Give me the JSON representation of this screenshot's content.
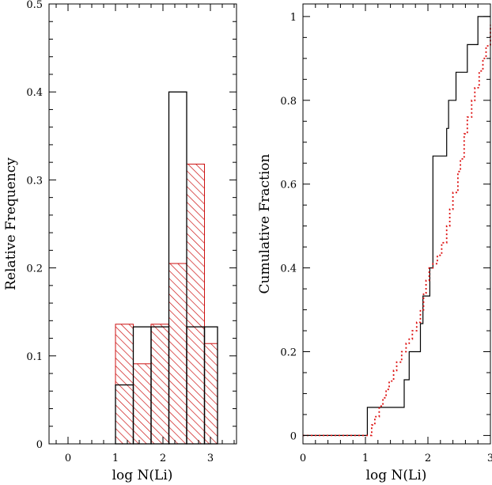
{
  "chart_data": [
    {
      "type": "bar",
      "subtype": "histogram",
      "xlabel": "log N(Li)",
      "ylabel": "Relative Frequency",
      "xlim": [
        -0.4,
        3.55
      ],
      "ylim": [
        0,
        0.5
      ],
      "xticks": [
        0,
        1,
        2,
        3
      ],
      "xtick_labels": [
        "0",
        "1",
        "2",
        "3"
      ],
      "yticks": [
        0,
        0.1,
        0.2,
        0.3,
        0.4,
        0.5
      ],
      "ytick_labels": [
        "0",
        "0.1",
        "0.2",
        "0.3",
        "0.4",
        "0.5"
      ],
      "series": [
        {
          "style": "solid black outline, unfilled",
          "color": "#000000",
          "bin_edges": [
            1.0,
            1.375,
            1.75,
            2.125,
            2.5,
            2.875,
            3.15
          ],
          "values": [
            0.067,
            0.133,
            0.133,
            0.4,
            0.133,
            0.133
          ]
        },
        {
          "style": "red diagonal hatch",
          "color": "#cc1111",
          "bin_edges": [
            1.0,
            1.375,
            1.75,
            2.125,
            2.5,
            2.875,
            3.15
          ],
          "values": [
            0.136,
            0.091,
            0.136,
            0.205,
            0.318,
            0.114
          ]
        }
      ]
    },
    {
      "type": "line",
      "subtype": "cumulative step",
      "xlabel": "log N(Li)",
      "ylabel": "Cumulative Fraction",
      "xlim": [
        0,
        3
      ],
      "ylim": [
        -0.02,
        1.03
      ],
      "xticks": [
        0,
        1,
        2,
        3
      ],
      "xtick_labels": [
        "0",
        "1",
        "2",
        "3"
      ],
      "yticks": [
        0,
        0.2,
        0.4,
        0.6,
        0.8,
        1
      ],
      "ytick_labels": [
        "0",
        "0.2",
        "0.4",
        "0.6",
        "0.8",
        "1"
      ],
      "series": [
        {
          "style": "solid black step",
          "color": "#000000",
          "x": [
            0,
            1.03,
            1.03,
            1.62,
            1.62,
            1.7,
            1.7,
            1.88,
            1.88,
            1.92,
            1.92,
            2.03,
            2.03,
            2.08,
            2.08,
            2.3,
            2.3,
            2.33,
            2.33,
            2.45,
            2.45,
            2.63,
            2.63,
            2.8,
            2.8,
            2.92,
            2.92,
            3.0
          ],
          "y": [
            0,
            0,
            0.067,
            0.067,
            0.133,
            0.133,
            0.2,
            0.2,
            0.267,
            0.267,
            0.333,
            0.333,
            0.4,
            0.4,
            0.667,
            0.667,
            0.733,
            0.733,
            0.8,
            0.8,
            0.867,
            0.867,
            0.933,
            0.933,
            1.0,
            1.0,
            1.0,
            1.0
          ]
        },
        {
          "style": "red dotted step",
          "color": "#dd1111",
          "x": [
            0,
            1.05,
            1.1,
            1.15,
            1.22,
            1.28,
            1.33,
            1.38,
            1.45,
            1.5,
            1.58,
            1.65,
            1.7,
            1.75,
            1.82,
            1.88,
            1.93,
            1.97,
            2.02,
            2.08,
            2.15,
            2.22,
            2.3,
            2.35,
            2.4,
            2.48,
            2.52,
            2.58,
            2.63,
            2.7,
            2.75,
            2.82,
            2.88,
            2.93,
            3.0
          ],
          "y": [
            0,
            0,
            0.025,
            0.045,
            0.07,
            0.09,
            0.11,
            0.13,
            0.155,
            0.175,
            0.2,
            0.22,
            0.23,
            0.25,
            0.27,
            0.3,
            0.34,
            0.37,
            0.4,
            0.41,
            0.43,
            0.46,
            0.5,
            0.54,
            0.58,
            0.63,
            0.66,
            0.72,
            0.76,
            0.8,
            0.83,
            0.87,
            0.9,
            0.93,
            0.98
          ]
        }
      ]
    }
  ]
}
